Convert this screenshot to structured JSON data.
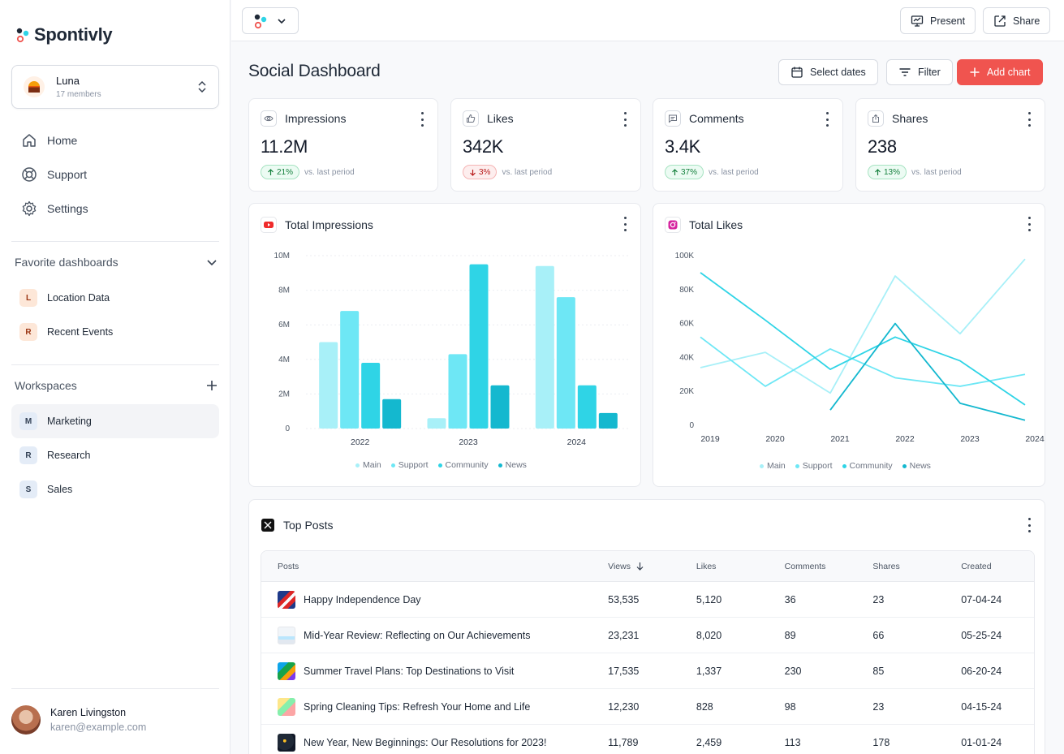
{
  "app": {
    "name": "Spontivly"
  },
  "workspace": {
    "name": "Luna",
    "members": "17 members"
  },
  "nav": [
    {
      "label": "Home",
      "icon": "home-icon"
    },
    {
      "label": "Support",
      "icon": "lifebuoy-icon"
    },
    {
      "label": "Settings",
      "icon": "gear-icon"
    }
  ],
  "favorites": {
    "title": "Favorite dashboards",
    "items": [
      {
        "letter": "L",
        "label": "Location Data"
      },
      {
        "letter": "R",
        "label": "Recent Events"
      }
    ]
  },
  "workspaces": {
    "title": "Workspaces",
    "items": [
      {
        "letter": "M",
        "label": "Marketing",
        "active": true
      },
      {
        "letter": "R",
        "label": "Research"
      },
      {
        "letter": "S",
        "label": "Sales"
      }
    ]
  },
  "user": {
    "name": "Karen Livingston",
    "email": "karen@example.com"
  },
  "topbar": {
    "present_label": "Present",
    "share_label": "Share"
  },
  "page": {
    "title": "Social Dashboard",
    "select_dates_label": "Select dates",
    "filter_label": "Filter",
    "add_chart_label": "Add chart"
  },
  "kpis": [
    {
      "label": "Impressions",
      "icon": "eye-icon",
      "value": "11.2M",
      "change": "21%",
      "direction": "up",
      "note": "vs. last period"
    },
    {
      "label": "Likes",
      "icon": "thumbs-up-icon",
      "value": "342K",
      "change": "3%",
      "direction": "down",
      "note": "vs. last period"
    },
    {
      "label": "Comments",
      "icon": "comment-icon",
      "value": "3.4K",
      "change": "37%",
      "direction": "up",
      "note": "vs. last period"
    },
    {
      "label": "Shares",
      "icon": "share-icon",
      "value": "238",
      "change": "13%",
      "direction": "up",
      "note": "vs. last period"
    }
  ],
  "colors": {
    "main": "#a8f0f8",
    "support": "#6ee7f5",
    "community": "#2fd4e6",
    "news": "#14b8cf",
    "accent": "#f0544f"
  },
  "chart_data": [
    {
      "type": "bar",
      "title": "Total Impressions",
      "categories": [
        "2022",
        "2023",
        "2024"
      ],
      "ylim": [
        0,
        10
      ],
      "yticks": [
        "0",
        "2M",
        "4M",
        "6M",
        "8M",
        "10M"
      ],
      "units": "millions",
      "series": [
        {
          "name": "Main",
          "values": [
            5.0,
            0.6,
            9.4
          ]
        },
        {
          "name": "Support",
          "values": [
            6.8,
            4.3,
            7.6
          ]
        },
        {
          "name": "Community",
          "values": [
            3.8,
            9.5,
            2.5
          ]
        },
        {
          "name": "News",
          "values": [
            1.7,
            2.5,
            0.9
          ]
        }
      ],
      "legend": [
        "Main",
        "Support",
        "Community",
        "News"
      ]
    },
    {
      "type": "line",
      "title": "Total Likes",
      "x": [
        "2019",
        "2020",
        "2021",
        "2022",
        "2023",
        "2024"
      ],
      "ylim": [
        0,
        100
      ],
      "yticks": [
        "0",
        "20K",
        "40K",
        "60K",
        "80K",
        "100K"
      ],
      "units": "thousands",
      "series": [
        {
          "name": "Main",
          "values": [
            34,
            43,
            19,
            88,
            54,
            98
          ]
        },
        {
          "name": "Support",
          "values": [
            52,
            23,
            45,
            28,
            23,
            30
          ]
        },
        {
          "name": "Community",
          "values": [
            90,
            62,
            33,
            52,
            38,
            12
          ]
        },
        {
          "name": "News",
          "values": [
            null,
            null,
            9,
            60,
            13,
            3
          ]
        }
      ],
      "legend": [
        "Main",
        "Support",
        "Community",
        "News"
      ]
    }
  ],
  "top_posts": {
    "title": "Top Posts",
    "columns": {
      "posts": "Posts",
      "views": "Views",
      "likes": "Likes",
      "comments": "Comments",
      "shares": "Shares",
      "created": "Created"
    },
    "rows": [
      {
        "title": "Happy Independence Day",
        "views": "53,535",
        "likes": "5,120",
        "comments": "36",
        "shares": "23",
        "created": "07-04-24"
      },
      {
        "title": "Mid-Year Review: Reflecting on Our Achievements",
        "views": "23,231",
        "likes": "8,020",
        "comments": "89",
        "shares": "66",
        "created": "05-25-24"
      },
      {
        "title": "Summer Travel Plans: Top Destinations to Visit",
        "views": "17,535",
        "likes": "1,337",
        "comments": "230",
        "shares": "85",
        "created": "06-20-24"
      },
      {
        "title": "Spring Cleaning Tips: Refresh Your Home and Life",
        "views": "12,230",
        "likes": "828",
        "comments": "98",
        "shares": "23",
        "created": "04-15-24"
      },
      {
        "title": "New Year, New Beginnings: Our Resolutions for 2023!",
        "views": "11,789",
        "likes": "2,459",
        "comments": "113",
        "shares": "178",
        "created": "01-01-24"
      }
    ]
  }
}
